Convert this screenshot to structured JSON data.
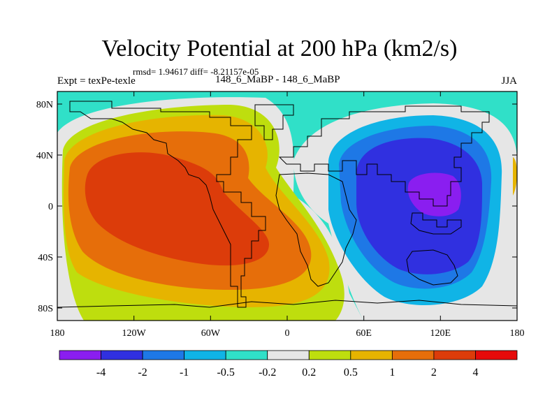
{
  "chart_data": {
    "type": "heatmap",
    "title": "Velocity Potential at 200 hPa (km2/s)",
    "subtitle": "rmsd= 1.94617 diff= -8.21157e-05",
    "left_string": "Expt = texPe-texle",
    "center_string": "148_6_MaBP - 148_6_MaBP",
    "right_string": "JJA",
    "x_ticks": [
      "180",
      "120W",
      "60W",
      "0",
      "60E",
      "120E",
      "180"
    ],
    "y_ticks": [
      "80N",
      "40N",
      "0",
      "40S",
      "80S"
    ],
    "xlim": [
      -180,
      180
    ],
    "ylim": [
      -90,
      90
    ],
    "colorbar": {
      "labels": [
        "-4",
        "-2",
        "-1",
        "-0.5",
        "-0.2",
        "0.2",
        "0.5",
        "1",
        "2",
        "4"
      ],
      "colors": [
        "#8a1ef0",
        "#3030e0",
        "#1e78e6",
        "#10b4e6",
        "#30e0c8",
        "#e6e6e6",
        "#bede0e",
        "#e6b400",
        "#e66e0a",
        "#dc3c0a",
        "#e60a0a"
      ]
    },
    "features": [
      {
        "name": "positive-center",
        "lon": -85,
        "lat": 5,
        "value": 3.0
      },
      {
        "name": "negative-center",
        "lon": 110,
        "lat": 15,
        "value": -4.0
      }
    ]
  }
}
